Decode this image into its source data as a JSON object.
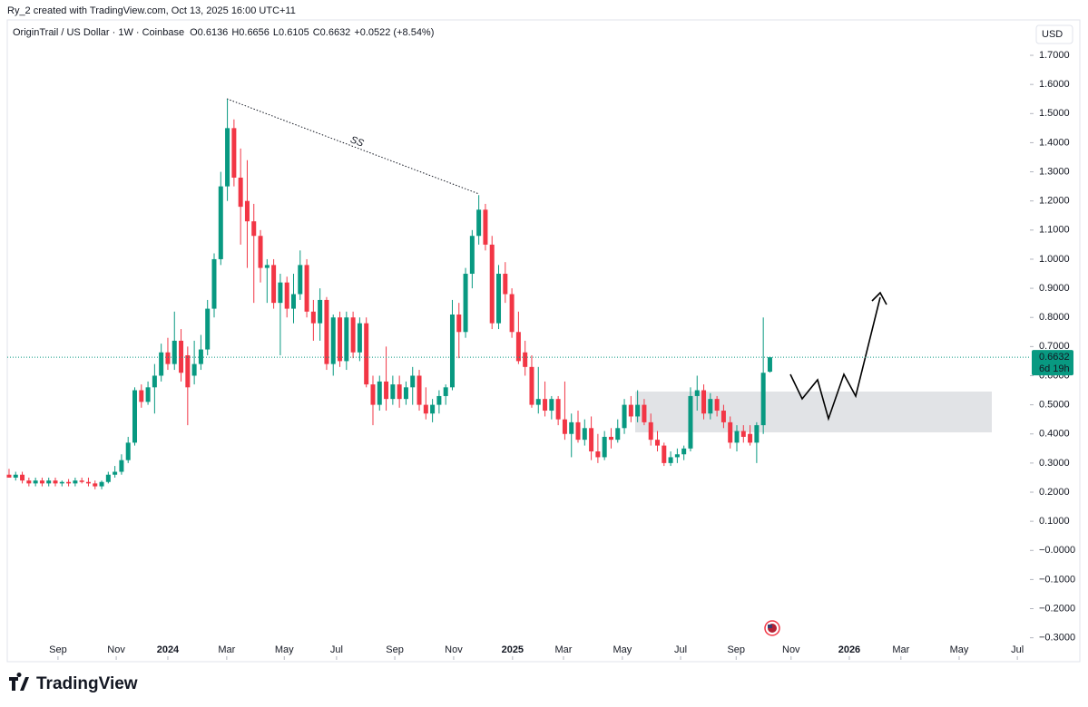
{
  "header": {
    "credit": "Ry_2 created with TradingView.com, Oct 13, 2025 16:00 UTC+11",
    "symbol": "OriginTrail / US Dollar · 1W · Coinbase",
    "ohlc": [
      {
        "label": "O",
        "value": "0.6136"
      },
      {
        "label": "H",
        "value": "0.6656"
      },
      {
        "label": "L",
        "value": "0.6105"
      },
      {
        "label": "C",
        "value": "0.6632"
      }
    ],
    "change": "+0.0522 (+8.54%)"
  },
  "footer": {
    "brand": "TradingView"
  },
  "chart_data": {
    "type": "candlestick",
    "currency": "USD",
    "annotation": "SS",
    "countdown": "6d 19h",
    "up_color": "#089981",
    "down_color": "#f23645",
    "xlim": [
      -0.27,
      154.3
    ],
    "xticks": [
      {
        "value": 7.4,
        "label": "Sep"
      },
      {
        "value": 16.2,
        "label": "Nov"
      },
      {
        "value": 24.0,
        "label": "2024"
      },
      {
        "value": 32.9,
        "label": "Mar"
      },
      {
        "value": 41.6,
        "label": "May"
      },
      {
        "value": 49.5,
        "label": "Jul"
      },
      {
        "value": 58.3,
        "label": "Sep"
      },
      {
        "value": 67.2,
        "label": "Nov"
      },
      {
        "value": 76.1,
        "label": "2025"
      },
      {
        "value": 83.8,
        "label": "Mar"
      },
      {
        "value": 92.7,
        "label": "May"
      },
      {
        "value": 101.5,
        "label": "Jul"
      },
      {
        "value": 109.9,
        "label": "Sep"
      },
      {
        "value": 118.2,
        "label": "Nov"
      },
      {
        "value": 127.0,
        "label": "2026"
      },
      {
        "value": 134.8,
        "label": "Mar"
      },
      {
        "value": 143.6,
        "label": "May"
      },
      {
        "value": 152.4,
        "label": "Jul"
      }
    ],
    "ylim": [
      -0.3758,
      1.8215
    ],
    "yticks": [
      {
        "value": 1.7,
        "label": "1.7000"
      },
      {
        "value": 1.6,
        "label": "1.6000"
      },
      {
        "value": 1.5,
        "label": "1.5000"
      },
      {
        "value": 1.4,
        "label": "1.4000"
      },
      {
        "value": 1.3,
        "label": "1.3000"
      },
      {
        "value": 1.2,
        "label": "1.2000"
      },
      {
        "value": 1.1,
        "label": "1.1000"
      },
      {
        "value": 1.0,
        "label": "1.0000"
      },
      {
        "value": 0.9,
        "label": "0.9000"
      },
      {
        "value": 0.8,
        "label": "0.8000"
      },
      {
        "value": 0.7,
        "label": "0.7000"
      },
      {
        "value": 0.6,
        "label": "0.6000"
      },
      {
        "value": 0.5,
        "label": "0.5000"
      },
      {
        "value": 0.4,
        "label": "0.4000"
      },
      {
        "value": 0.3,
        "label": "0.3000"
      },
      {
        "value": 0.2,
        "label": "0.2000"
      },
      {
        "value": 0.1,
        "label": "0.1000"
      },
      {
        "value": 0,
        "label": "−0.0000"
      },
      {
        "value": -0.1,
        "label": "−0.1000"
      },
      {
        "value": -0.2,
        "label": "−0.2000"
      },
      {
        "value": -0.3,
        "label": "−0.3000"
      }
    ],
    "candles": [
      {
        "open": 0.26,
        "high": 0.28,
        "low": 0.25,
        "close": 0.25
      },
      {
        "open": 0.25,
        "high": 0.27,
        "low": 0.24,
        "close": 0.26
      },
      {
        "open": 0.26,
        "high": 0.27,
        "low": 0.23,
        "close": 0.24
      },
      {
        "open": 0.24,
        "high": 0.25,
        "low": 0.22,
        "close": 0.23
      },
      {
        "open": 0.23,
        "high": 0.25,
        "low": 0.22,
        "close": 0.24
      },
      {
        "open": 0.24,
        "high": 0.25,
        "low": 0.22,
        "close": 0.23
      },
      {
        "open": 0.23,
        "high": 0.25,
        "low": 0.22,
        "close": 0.24
      },
      {
        "open": 0.24,
        "high": 0.25,
        "low": 0.22,
        "close": 0.23
      },
      {
        "open": 0.23,
        "high": 0.24,
        "low": 0.22,
        "close": 0.235
      },
      {
        "open": 0.235,
        "high": 0.245,
        "low": 0.22,
        "close": 0.23
      },
      {
        "open": 0.23,
        "high": 0.25,
        "low": 0.22,
        "close": 0.24
      },
      {
        "open": 0.24,
        "high": 0.25,
        "low": 0.23,
        "close": 0.235
      },
      {
        "open": 0.235,
        "high": 0.25,
        "low": 0.22,
        "close": 0.23
      },
      {
        "open": 0.23,
        "high": 0.24,
        "low": 0.21,
        "close": 0.22
      },
      {
        "open": 0.22,
        "high": 0.24,
        "low": 0.21,
        "close": 0.235
      },
      {
        "open": 0.235,
        "high": 0.27,
        "low": 0.23,
        "close": 0.26
      },
      {
        "open": 0.26,
        "high": 0.29,
        "low": 0.25,
        "close": 0.27
      },
      {
        "open": 0.27,
        "high": 0.33,
        "low": 0.26,
        "close": 0.31
      },
      {
        "open": 0.31,
        "high": 0.39,
        "low": 0.3,
        "close": 0.37
      },
      {
        "open": 0.37,
        "high": 0.56,
        "low": 0.36,
        "close": 0.55
      },
      {
        "open": 0.55,
        "high": 0.57,
        "low": 0.49,
        "close": 0.51
      },
      {
        "open": 0.51,
        "high": 0.58,
        "low": 0.5,
        "close": 0.56
      },
      {
        "open": 0.56,
        "high": 0.64,
        "low": 0.47,
        "close": 0.6
      },
      {
        "open": 0.6,
        "high": 0.71,
        "low": 0.58,
        "close": 0.68
      },
      {
        "open": 0.68,
        "high": 0.73,
        "low": 0.62,
        "close": 0.64
      },
      {
        "open": 0.64,
        "high": 0.82,
        "low": 0.62,
        "close": 0.72
      },
      {
        "open": 0.72,
        "high": 0.76,
        "low": 0.58,
        "close": 0.61
      },
      {
        "open": 0.67,
        "high": 0.7,
        "low": 0.43,
        "close": 0.56
      },
      {
        "open": 0.6,
        "high": 0.72,
        "low": 0.57,
        "close": 0.64
      },
      {
        "open": 0.64,
        "high": 0.74,
        "low": 0.62,
        "close": 0.69
      },
      {
        "open": 0.69,
        "high": 0.86,
        "low": 0.67,
        "close": 0.83
      },
      {
        "open": 0.83,
        "high": 1.02,
        "low": 0.8,
        "close": 1.0
      },
      {
        "open": 1.0,
        "high": 1.3,
        "low": 0.98,
        "close": 1.25
      },
      {
        "open": 1.25,
        "high": 1.55,
        "low": 1.2,
        "close": 1.45
      },
      {
        "open": 1.45,
        "high": 1.48,
        "low": 1.25,
        "close": 1.28
      },
      {
        "open": 1.28,
        "high": 1.38,
        "low": 1.05,
        "close": 1.18
      },
      {
        "open": 1.2,
        "high": 1.34,
        "low": 0.97,
        "close": 1.13
      },
      {
        "open": 1.13,
        "high": 1.19,
        "low": 0.85,
        "close": 1.08
      },
      {
        "open": 1.08,
        "high": 1.1,
        "low": 0.92,
        "close": 0.97
      },
      {
        "open": 0.97,
        "high": 1.0,
        "low": 0.85,
        "close": 0.98
      },
      {
        "open": 0.98,
        "high": 1.0,
        "low": 0.83,
        "close": 0.85
      },
      {
        "open": 0.85,
        "high": 0.95,
        "low": 0.67,
        "close": 0.92
      },
      {
        "open": 0.92,
        "high": 0.94,
        "low": 0.8,
        "close": 0.83
      },
      {
        "open": 0.83,
        "high": 0.95,
        "low": 0.78,
        "close": 0.88
      },
      {
        "open": 0.88,
        "high": 1.03,
        "low": 0.86,
        "close": 0.98
      },
      {
        "open": 0.98,
        "high": 1.0,
        "low": 0.8,
        "close": 0.82
      },
      {
        "open": 0.82,
        "high": 0.86,
        "low": 0.72,
        "close": 0.78
      },
      {
        "open": 0.78,
        "high": 0.9,
        "low": 0.72,
        "close": 0.86
      },
      {
        "open": 0.86,
        "high": 0.87,
        "low": 0.62,
        "close": 0.64
      },
      {
        "open": 0.64,
        "high": 0.81,
        "low": 0.6,
        "close": 0.8
      },
      {
        "open": 0.8,
        "high": 0.82,
        "low": 0.63,
        "close": 0.65
      },
      {
        "open": 0.65,
        "high": 0.82,
        "low": 0.62,
        "close": 0.8
      },
      {
        "open": 0.8,
        "high": 0.82,
        "low": 0.66,
        "close": 0.68
      },
      {
        "open": 0.68,
        "high": 0.8,
        "low": 0.65,
        "close": 0.78
      },
      {
        "open": 0.78,
        "high": 0.8,
        "low": 0.56,
        "close": 0.57
      },
      {
        "open": 0.57,
        "high": 0.6,
        "low": 0.43,
        "close": 0.5
      },
      {
        "open": 0.5,
        "high": 0.6,
        "low": 0.48,
        "close": 0.58
      },
      {
        "open": 0.58,
        "high": 0.7,
        "low": 0.48,
        "close": 0.52
      },
      {
        "open": 0.52,
        "high": 0.6,
        "low": 0.5,
        "close": 0.57
      },
      {
        "open": 0.57,
        "high": 0.6,
        "low": 0.49,
        "close": 0.52
      },
      {
        "open": 0.52,
        "high": 0.58,
        "low": 0.5,
        "close": 0.56
      },
      {
        "open": 0.56,
        "high": 0.63,
        "low": 0.5,
        "close": 0.6
      },
      {
        "open": 0.6,
        "high": 0.62,
        "low": 0.48,
        "close": 0.5
      },
      {
        "open": 0.5,
        "high": 0.56,
        "low": 0.45,
        "close": 0.47
      },
      {
        "open": 0.47,
        "high": 0.52,
        "low": 0.44,
        "close": 0.5
      },
      {
        "open": 0.5,
        "high": 0.55,
        "low": 0.47,
        "close": 0.53
      },
      {
        "open": 0.53,
        "high": 0.57,
        "low": 0.5,
        "close": 0.56
      },
      {
        "open": 0.56,
        "high": 0.86,
        "low": 0.55,
        "close": 0.81
      },
      {
        "open": 0.81,
        "high": 0.85,
        "low": 0.66,
        "close": 0.75
      },
      {
        "open": 0.75,
        "high": 0.97,
        "low": 0.73,
        "close": 0.95
      },
      {
        "open": 0.95,
        "high": 1.1,
        "low": 0.9,
        "close": 1.08
      },
      {
        "open": 1.08,
        "high": 1.22,
        "low": 1.05,
        "close": 1.17
      },
      {
        "open": 1.17,
        "high": 1.19,
        "low": 1.03,
        "close": 1.05
      },
      {
        "open": 1.05,
        "high": 1.08,
        "low": 0.76,
        "close": 0.78
      },
      {
        "open": 0.78,
        "high": 0.98,
        "low": 0.76,
        "close": 0.95
      },
      {
        "open": 0.95,
        "high": 0.99,
        "low": 0.85,
        "close": 0.88
      },
      {
        "open": 0.88,
        "high": 0.9,
        "low": 0.73,
        "close": 0.75
      },
      {
        "open": 0.75,
        "high": 0.82,
        "low": 0.64,
        "close": 0.65
      },
      {
        "open": 0.68,
        "high": 0.72,
        "low": 0.6,
        "close": 0.63
      },
      {
        "open": 0.63,
        "high": 0.67,
        "low": 0.49,
        "close": 0.5
      },
      {
        "open": 0.5,
        "high": 0.63,
        "low": 0.47,
        "close": 0.52
      },
      {
        "open": 0.52,
        "high": 0.58,
        "low": 0.46,
        "close": 0.48
      },
      {
        "open": 0.48,
        "high": 0.53,
        "low": 0.45,
        "close": 0.52
      },
      {
        "open": 0.52,
        "high": 0.53,
        "low": 0.43,
        "close": 0.45
      },
      {
        "open": 0.45,
        "high": 0.58,
        "low": 0.38,
        "close": 0.4
      },
      {
        "open": 0.4,
        "high": 0.47,
        "low": 0.32,
        "close": 0.44
      },
      {
        "open": 0.44,
        "high": 0.48,
        "low": 0.37,
        "close": 0.38
      },
      {
        "open": 0.38,
        "high": 0.45,
        "low": 0.36,
        "close": 0.42
      },
      {
        "open": 0.42,
        "high": 0.46,
        "low": 0.31,
        "close": 0.34
      },
      {
        "open": 0.34,
        "high": 0.4,
        "low": 0.3,
        "close": 0.32
      },
      {
        "open": 0.32,
        "high": 0.41,
        "low": 0.31,
        "close": 0.39
      },
      {
        "open": 0.39,
        "high": 0.42,
        "low": 0.35,
        "close": 0.38
      },
      {
        "open": 0.38,
        "high": 0.45,
        "low": 0.37,
        "close": 0.42
      },
      {
        "open": 0.42,
        "high": 0.52,
        "low": 0.4,
        "close": 0.5
      },
      {
        "open": 0.5,
        "high": 0.53,
        "low": 0.44,
        "close": 0.46
      },
      {
        "open": 0.46,
        "high": 0.55,
        "low": 0.44,
        "close": 0.5
      },
      {
        "open": 0.5,
        "high": 0.52,
        "low": 0.43,
        "close": 0.44
      },
      {
        "open": 0.44,
        "high": 0.47,
        "low": 0.36,
        "close": 0.38
      },
      {
        "open": 0.38,
        "high": 0.41,
        "low": 0.34,
        "close": 0.36
      },
      {
        "open": 0.36,
        "high": 0.37,
        "low": 0.29,
        "close": 0.3
      },
      {
        "open": 0.3,
        "high": 0.34,
        "low": 0.29,
        "close": 0.32
      },
      {
        "open": 0.32,
        "high": 0.35,
        "low": 0.3,
        "close": 0.33
      },
      {
        "open": 0.33,
        "high": 0.36,
        "low": 0.31,
        "close": 0.35
      },
      {
        "open": 0.35,
        "high": 0.56,
        "low": 0.34,
        "close": 0.53
      },
      {
        "open": 0.53,
        "high": 0.6,
        "low": 0.48,
        "close": 0.55
      },
      {
        "open": 0.55,
        "high": 0.57,
        "low": 0.45,
        "close": 0.47
      },
      {
        "open": 0.47,
        "high": 0.54,
        "low": 0.45,
        "close": 0.52
      },
      {
        "open": 0.52,
        "high": 0.53,
        "low": 0.46,
        "close": 0.48
      },
      {
        "open": 0.48,
        "high": 0.5,
        "low": 0.42,
        "close": 0.44
      },
      {
        "open": 0.44,
        "high": 0.46,
        "low": 0.35,
        "close": 0.37
      },
      {
        "open": 0.37,
        "high": 0.43,
        "low": 0.34,
        "close": 0.41
      },
      {
        "open": 0.41,
        "high": 0.43,
        "low": 0.37,
        "close": 0.39
      },
      {
        "open": 0.4,
        "high": 0.43,
        "low": 0.36,
        "close": 0.37
      },
      {
        "open": 0.37,
        "high": 0.44,
        "low": 0.3,
        "close": 0.43
      },
      {
        "open": 0.43,
        "high": 0.8,
        "low": 0.4,
        "close": 0.61
      },
      {
        "open": 0.6136,
        "high": 0.6656,
        "low": 0.6105,
        "close": 0.6632
      }
    ]
  }
}
